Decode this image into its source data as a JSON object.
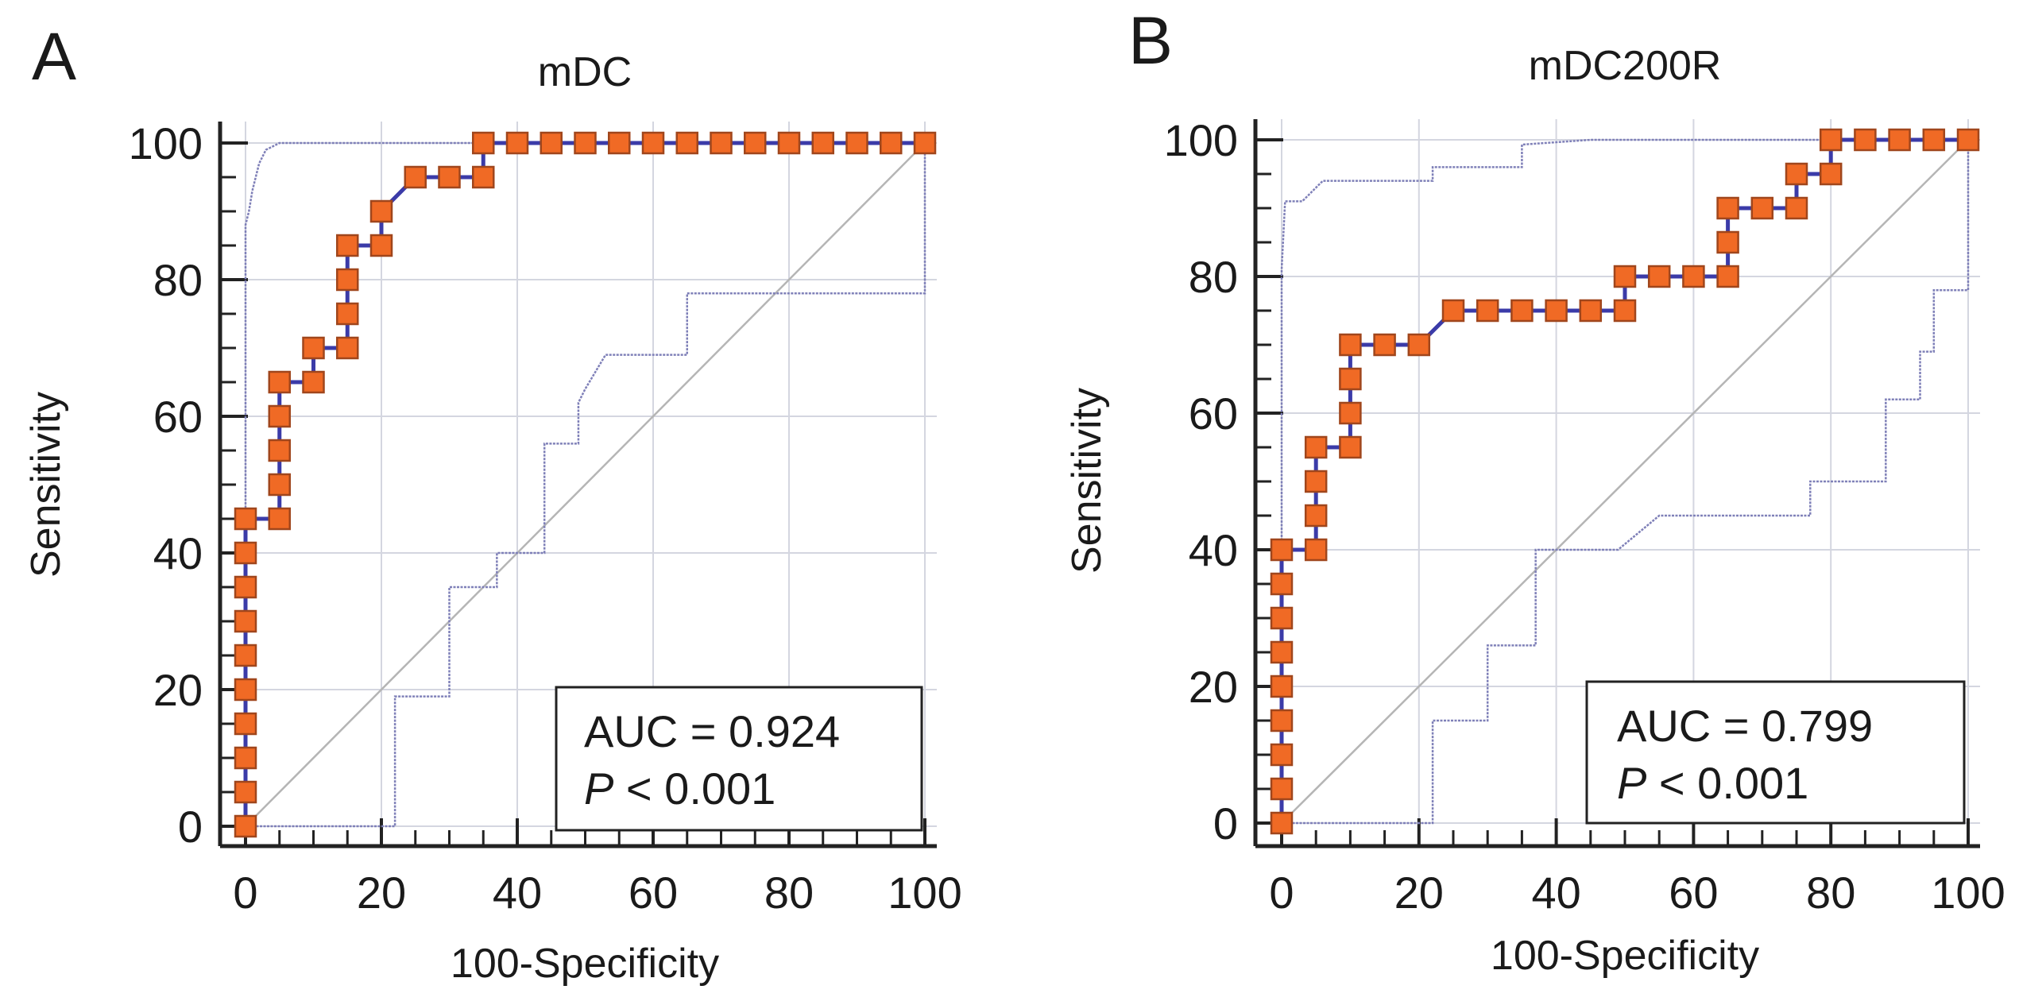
{
  "chart_data": [
    {
      "type": "line",
      "panel_label": "A",
      "title": "mDC",
      "xlabel": "100-Specificity",
      "ylabel": "Sensitivity",
      "xlim": [
        0,
        100
      ],
      "ylim": [
        0,
        100
      ],
      "xticks": [
        "0",
        "20",
        "40",
        "60",
        "80",
        "100"
      ],
      "yticks": [
        "0",
        "20",
        "40",
        "60",
        "80",
        "100"
      ],
      "grid": true,
      "annotation": {
        "auc": "AUC = 0.924",
        "p_label": "P",
        "p_rest": " < 0.001"
      },
      "series": [
        {
          "name": "ROC",
          "x": [
            0,
            0,
            0,
            0,
            0,
            0,
            0,
            0,
            0,
            0,
            5,
            5,
            5,
            5,
            5,
            10,
            10,
            15,
            15,
            15,
            15,
            20,
            20,
            25,
            30,
            35,
            35,
            40,
            45,
            50,
            55,
            60,
            65,
            70,
            75,
            80,
            85,
            90,
            95,
            100
          ],
          "y": [
            0,
            5,
            10,
            15,
            20,
            25,
            30,
            35,
            40,
            45,
            45,
            50,
            55,
            60,
            65,
            65,
            70,
            70,
            75,
            80,
            85,
            85,
            90,
            95,
            95,
            95,
            100,
            100,
            100,
            100,
            100,
            100,
            100,
            100,
            100,
            100,
            100,
            100,
            100,
            100
          ]
        },
        {
          "name": "upper_ci",
          "x": [
            0,
            0,
            0.5,
            1,
            1.5,
            2,
            3,
            5,
            100
          ],
          "y": [
            0,
            88,
            90,
            93,
            95,
            97,
            99,
            100,
            100
          ]
        },
        {
          "name": "lower_ci",
          "x": [
            0,
            22,
            22,
            30,
            30,
            37,
            37,
            44,
            44,
            49,
            49,
            50,
            53,
            65,
            65,
            100,
            100
          ],
          "y": [
            0,
            0,
            19,
            19,
            35,
            35,
            40,
            40,
            56,
            56,
            62,
            64,
            69,
            69,
            78,
            78,
            100
          ]
        },
        {
          "name": "reference",
          "x": [
            0,
            100
          ],
          "y": [
            0,
            100
          ]
        }
      ]
    },
    {
      "type": "line",
      "panel_label": "B",
      "title": "mDC200R",
      "xlabel": "100-Specificity",
      "ylabel": "Sensitivity",
      "xlim": [
        0,
        100
      ],
      "ylim": [
        0,
        100
      ],
      "xticks": [
        "0",
        "20",
        "40",
        "60",
        "80",
        "100"
      ],
      "yticks": [
        "0",
        "20",
        "40",
        "60",
        "80",
        "100"
      ],
      "grid": true,
      "annotation": {
        "auc": "AUC = 0.799",
        "p_label": "P",
        "p_rest": " < 0.001"
      },
      "series": [
        {
          "name": "ROC",
          "x": [
            0,
            0,
            0,
            0,
            0,
            0,
            0,
            0,
            0,
            5,
            5,
            5,
            5,
            10,
            10,
            10,
            10,
            15,
            20,
            25,
            30,
            35,
            40,
            45,
            50,
            50,
            55,
            60,
            65,
            65,
            65,
            70,
            75,
            75,
            80,
            80,
            85,
            90,
            95,
            100
          ],
          "y": [
            0,
            5,
            10,
            15,
            20,
            25,
            30,
            35,
            40,
            40,
            45,
            50,
            55,
            55,
            60,
            65,
            70,
            70,
            70,
            75,
            75,
            75,
            75,
            75,
            75,
            80,
            80,
            80,
            80,
            85,
            90,
            90,
            90,
            95,
            95,
            100,
            100,
            100,
            100,
            100
          ]
        },
        {
          "name": "upper_ci",
          "x": [
            0,
            0,
            0.5,
            3,
            6,
            22,
            22,
            35,
            35,
            45,
            100
          ],
          "y": [
            0,
            81,
            91,
            91,
            94,
            94,
            96,
            96,
            99.3,
            100,
            100
          ]
        },
        {
          "name": "lower_ci",
          "x": [
            0,
            22,
            22,
            30,
            30,
            37,
            37,
            49,
            55,
            77,
            77,
            88,
            88,
            93,
            93,
            95,
            95,
            100,
            100
          ],
          "y": [
            0,
            0,
            15,
            15,
            26,
            26,
            40,
            40,
            45,
            45,
            50,
            50,
            62,
            62,
            69,
            69,
            78,
            78,
            100
          ]
        },
        {
          "name": "reference",
          "x": [
            0,
            100
          ],
          "y": [
            0,
            100
          ]
        }
      ]
    }
  ],
  "colors": {
    "marker_fill": "#F06A25",
    "marker_edge": "#A0461C",
    "roc_line": "#3B3BA8",
    "ci_line": "#7F80B8",
    "grid": "#D4D6E0",
    "reference": "#B5B5B5"
  }
}
